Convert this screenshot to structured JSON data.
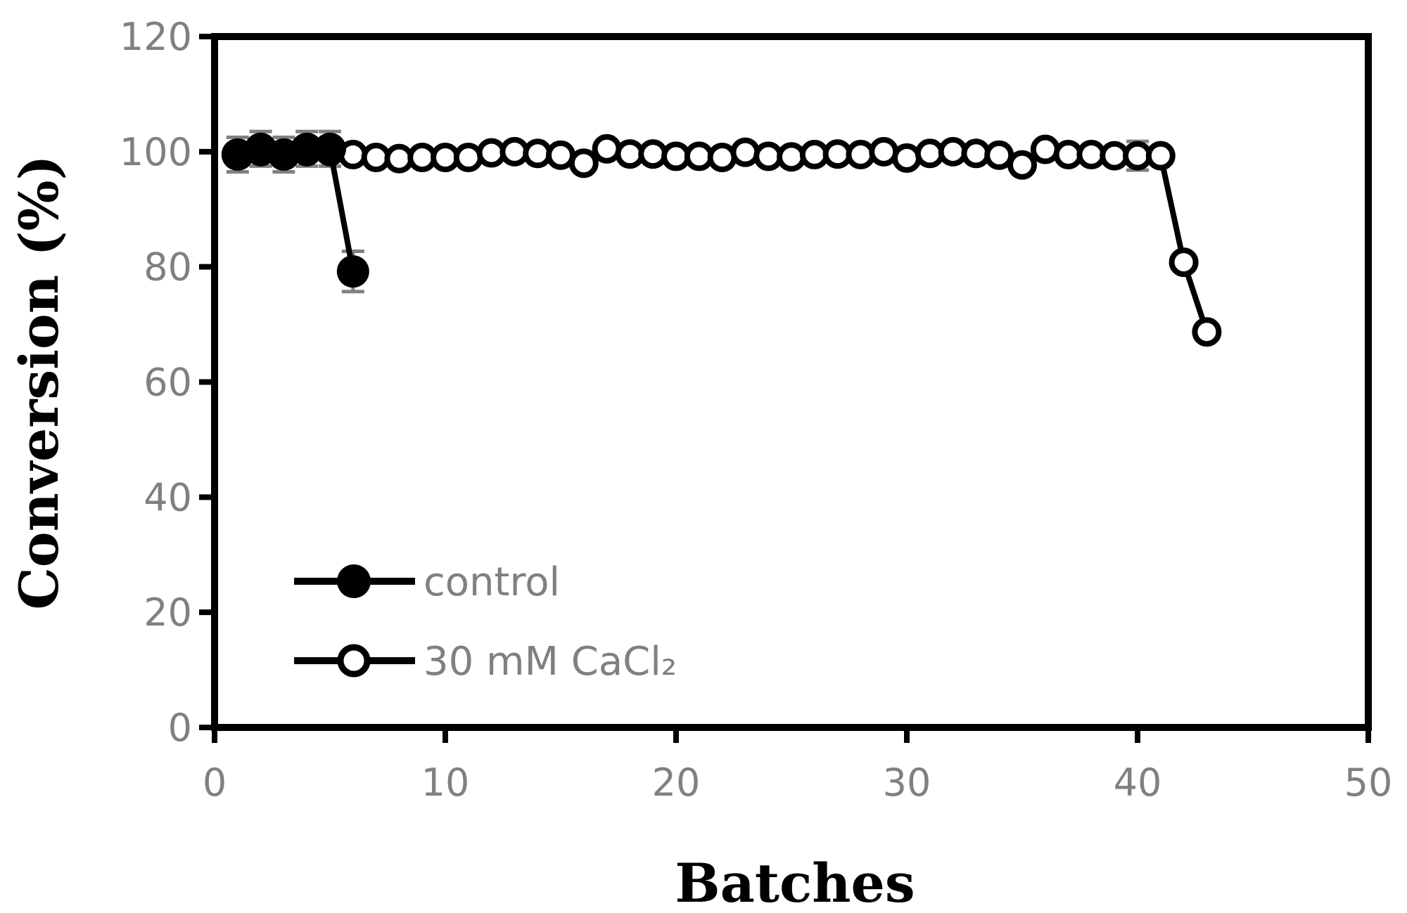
{
  "chart_data": {
    "type": "line",
    "title": "",
    "xlabel": "Batches",
    "ylabel": "Conversion (%)",
    "xlim": [
      0,
      50
    ],
    "ylim": [
      0,
      120
    ],
    "xticks": [
      0,
      10,
      20,
      30,
      40,
      50
    ],
    "yticks": [
      0,
      20,
      40,
      60,
      80,
      100,
      120
    ],
    "grid": false,
    "legend_position": "bottom-left",
    "series": [
      {
        "name": "control",
        "marker": "filled-circle",
        "color": "#000000",
        "x": [
          1,
          2,
          3,
          4,
          5,
          6
        ],
        "y": [
          99.5,
          100.5,
          99.5,
          100.5,
          100.5,
          79.2
        ],
        "error": [
          3,
          3,
          3,
          3,
          3,
          3.5
        ]
      },
      {
        "name": "30 mM CaCl₂",
        "marker": "open-circle",
        "color": "#000000",
        "x": [
          1,
          2,
          3,
          4,
          5,
          6,
          7,
          8,
          9,
          10,
          11,
          12,
          13,
          14,
          15,
          16,
          17,
          18,
          19,
          20,
          21,
          22,
          23,
          24,
          25,
          26,
          27,
          28,
          29,
          30,
          31,
          32,
          33,
          34,
          35,
          36,
          37,
          38,
          39,
          40,
          41,
          42,
          43
        ],
        "y": [
          99.5,
          100,
          99.5,
          100,
          100,
          99.5,
          99,
          98.8,
          99,
          99,
          99,
          99.8,
          100,
          99.7,
          99.4,
          98,
          100.5,
          99.6,
          99.6,
          99.2,
          99.2,
          99,
          99.9,
          99.2,
          99.1,
          99.5,
          99.6,
          99.5,
          100,
          98.9,
          99.7,
          100,
          99.7,
          99.4,
          97.7,
          100.4,
          99.5,
          99.5,
          99.3,
          99.3,
          99.3,
          80.8,
          68.7
        ],
        "error_x": [
          40
        ],
        "error_value": 2.5
      }
    ]
  }
}
